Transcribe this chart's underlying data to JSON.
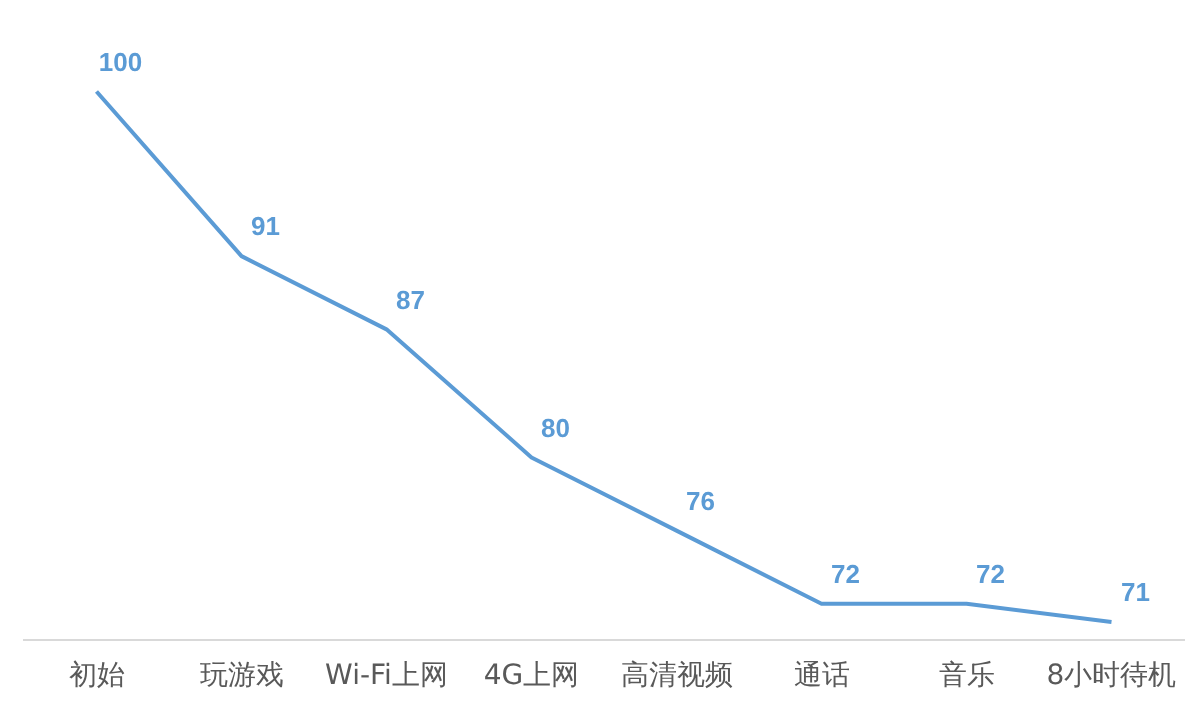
{
  "chart_data": {
    "type": "line",
    "categories": [
      "初始",
      "玩游戏",
      "Wi-Fi上网",
      "4G上网",
      "高清视频",
      "通话",
      "音乐",
      "8小时待机"
    ],
    "series": [
      {
        "color": "#5b9bd5",
        "values": [
          100,
          91,
          87,
          80,
          76,
          72,
          72,
          71
        ]
      }
    ],
    "grid": false,
    "legend": false,
    "tick_labels": "x",
    "line_style": "solid",
    "data_labels": true
  }
}
